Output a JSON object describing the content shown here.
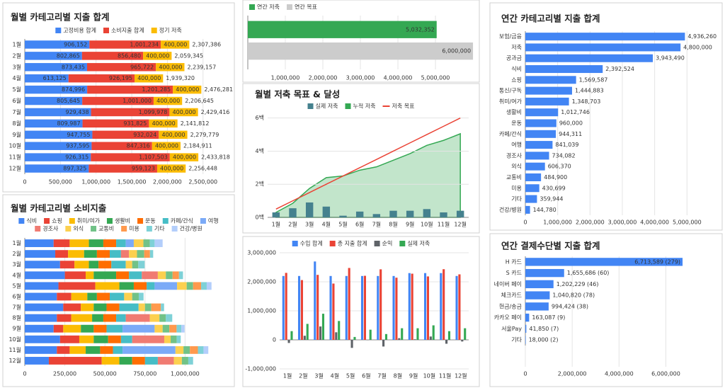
{
  "chart_data": [
    {
      "type": "bar",
      "orientation": "horizontal",
      "stacked": true,
      "title": "월별 카테고리별 지출 합계",
      "categories": [
        "1월",
        "2월",
        "3월",
        "4월",
        "5월",
        "6월",
        "7월",
        "8월",
        "9월",
        "10월",
        "11월",
        "12월"
      ],
      "series": [
        {
          "name": "고정비용 합계",
          "color": "#4285f4",
          "values": [
            906152,
            802865,
            873435,
            613125,
            874996,
            805645,
            929438,
            809987,
            947755,
            937595,
            926315,
            897325
          ],
          "value_labels": [
            "906,152",
            "802,865",
            "873,435",
            "613,125",
            "874,996",
            "805,645",
            "929,438",
            "809,987",
            "947,755",
            "937,595",
            "926,315",
            "897,325"
          ]
        },
        {
          "name": "소비지출 합계",
          "color": "#ea4335",
          "values": [
            1001234,
            856480,
            965722,
            926195,
            1201285,
            1001000,
            1099978,
            931825,
            932024,
            847316,
            1107503,
            959123
          ],
          "value_labels": [
            "1,001,234",
            "856,480",
            "965,722",
            "926,195",
            "1,201,285",
            "1,001,000",
            "1,099,978",
            "931,825",
            "932,024",
            "847,316",
            "1,107,503",
            "959,123"
          ]
        },
        {
          "name": "정기 저축",
          "color": "#fbbc04",
          "values": [
            400000,
            400000,
            400000,
            400000,
            400000,
            400000,
            400000,
            400000,
            400000,
            400000,
            400000,
            400000
          ],
          "value_labels": [
            "400,000",
            "400,000",
            "400,000",
            "400,000",
            "400,000",
            "400,000",
            "400,000",
            "400,000",
            "400,000",
            "400,000",
            "400,000",
            "400,000"
          ]
        }
      ],
      "totals": [
        2307386,
        2059345,
        2239157,
        1939320,
        2476281,
        2206645,
        2429416,
        2141812,
        2279779,
        2184911,
        2433818,
        2256448
      ],
      "total_labels": [
        "2,307,386",
        "2,059,345",
        "2,239,157",
        "1,939,320",
        "2,476,281",
        "2,206,645",
        "2,429,416",
        "2,141,812",
        "2,279,779",
        "2,184,911",
        "2,433,818",
        "2,256,448"
      ],
      "value_label_position": "inside",
      "xlim": [
        0,
        2830000
      ],
      "xticks": [
        0,
        {
          "value": 500000,
          "label": "500,000"
        },
        {
          "value": 1000000,
          "label": "1,000,000"
        },
        {
          "value": 1500000,
          "label": "1,500,000"
        },
        {
          "value": 2000000,
          "label": "2,000,000"
        },
        {
          "value": 2500000,
          "label": "2,500,000"
        }
      ],
      "grid": true
    },
    {
      "type": "bar",
      "orientation": "horizontal",
      "stacked": false,
      "categories": [
        null
      ],
      "series": [
        {
          "name": "연간 저축",
          "color": "#34a853",
          "values": [
            5032352
          ],
          "value_labels": [
            "5,032,352"
          ]
        },
        {
          "name": "연간 목표",
          "color": "#cccccc",
          "values": [
            6000000
          ],
          "value_labels": [
            "6,000,000"
          ]
        }
      ],
      "value_label_position": "inside",
      "xlim": [
        0,
        6150000
      ],
      "xticks": [
        {
          "value": 1000000,
          "label": "1,000,000"
        },
        {
          "value": 2000000,
          "label": "2,000,000"
        },
        {
          "value": 3000000,
          "label": "3,000,000"
        },
        {
          "value": 4000000,
          "label": "4,000,000"
        },
        {
          "value": 5000000,
          "label": "5,000,000"
        }
      ],
      "grid": true
    },
    {
      "type": "combo",
      "title": "월별 저축 목표 & 달성",
      "categories": [
        "1월",
        "2월",
        "3월",
        "4월",
        "5월",
        "6월",
        "7월",
        "8월",
        "9월",
        "10월",
        "11월",
        "12월"
      ],
      "series": [
        {
          "name": "실제 저축",
          "kind": "bar",
          "color": "#45818e",
          "values": [
            300000,
            550000,
            900000,
            650000,
            100000,
            350000,
            200000,
            400000,
            400000,
            500000,
            300000,
            400000
          ]
        },
        {
          "name": "누적 저축",
          "kind": "area",
          "color": "#34a853",
          "values": [
            300000,
            850000,
            1750000,
            2400000,
            2500000,
            2850000,
            3050000,
            3450000,
            3850000,
            4350000,
            4650000,
            5050000
          ]
        },
        {
          "name": "저축 목표",
          "kind": "line",
          "color": "#ea4335",
          "values": [
            500000,
            1000000,
            1500000,
            2000000,
            2500000,
            3000000,
            3500000,
            4000000,
            4500000,
            5000000,
            5500000,
            6000000
          ]
        }
      ],
      "ylim": [
        0,
        6200000
      ],
      "yticks": [
        {
          "value": 0,
          "label": "0백"
        },
        {
          "value": 2000000,
          "label": "2백"
        },
        {
          "value": 4000000,
          "label": "4백"
        },
        {
          "value": 6000000,
          "label": "6백"
        }
      ],
      "grid": true
    },
    {
      "type": "combo",
      "categories": [
        "1월",
        "2월",
        "3월",
        "4월",
        "5월",
        "6월",
        "7월",
        "8월",
        "9월",
        "10월",
        "11월",
        "12월"
      ],
      "series": [
        {
          "name": "수입 합계",
          "kind": "bar",
          "color": "#4285f4",
          "values": [
            2200000,
            2200000,
            2700000,
            2200000,
            2200000,
            2200000,
            2200000,
            2200000,
            2300000,
            2300000,
            2300000,
            2200000
          ]
        },
        {
          "name": "총 지출 합계",
          "kind": "bar",
          "color": "#ea4335",
          "values": [
            2307386,
            2059345,
            2239157,
            1939320,
            2476281,
            2206645,
            2429416,
            2141812,
            2279779,
            2184911,
            2433818,
            2256448
          ]
        },
        {
          "name": "순익",
          "kind": "bar",
          "color": "#5f6368",
          "values": [
            -107386,
            140655,
            460843,
            260680,
            -276281,
            -6645,
            -229416,
            58188,
            20221,
            115089,
            -133818,
            -56448
          ]
        },
        {
          "name": "실제 저축",
          "kind": "bar",
          "color": "#34a853",
          "values": [
            300000,
            550000,
            900000,
            650000,
            100000,
            350000,
            200000,
            400000,
            400000,
            500000,
            300000,
            400000
          ]
        }
      ],
      "ylim": [
        -1000000,
        3000000
      ],
      "yticks": [
        {
          "value": -1000000,
          "label": "-1,000,000"
        },
        0,
        {
          "value": 1000000,
          "label": "1,000,000"
        },
        {
          "value": 2000000,
          "label": "2,000,000"
        },
        {
          "value": 3000000,
          "label": "3,000,000"
        }
      ],
      "grid": true
    },
    {
      "type": "bar",
      "orientation": "horizontal",
      "stacked": true,
      "title": "월별 카테고리별 소비지출",
      "categories": [
        "1월",
        "2월",
        "3월",
        "4월",
        "5월",
        "6월",
        "7월",
        "8월",
        "9월",
        "10월",
        "11월",
        "12월"
      ],
      "series": [
        {
          "name": "식비",
          "color": "#4285f4",
          "values": [
            180000,
            190000,
            220000,
            250000,
            210000,
            200000,
            240000,
            200000,
            180000,
            220000,
            200000,
            150000
          ]
        },
        {
          "name": "쇼핑",
          "color": "#ea4335",
          "values": [
            100000,
            80000,
            90000,
            130000,
            230000,
            90000,
            110000,
            90000,
            60000,
            120000,
            80000,
            330000
          ]
        },
        {
          "name": "취미/여가",
          "color": "#fbbc04",
          "values": [
            120000,
            100000,
            90000,
            50000,
            150000,
            100000,
            80000,
            130000,
            110000,
            90000,
            100000,
            110000
          ]
        },
        {
          "name": "생활비",
          "color": "#34a853",
          "values": [
            90000,
            80000,
            60000,
            140000,
            90000,
            60000,
            80000,
            70000,
            80000,
            90000,
            90000,
            80000
          ]
        },
        {
          "name": "운동",
          "color": "#ff6d01",
          "values": [
            80000,
            80000,
            80000,
            80000,
            80000,
            80000,
            80000,
            80000,
            80000,
            80000,
            80000,
            80000
          ]
        },
        {
          "name": "카페/간식",
          "color": "#46bdc6",
          "values": [
            60000,
            70000,
            90000,
            80000,
            50000,
            90000,
            120000,
            60000,
            100000,
            70000,
            60000,
            80000
          ]
        },
        {
          "name": "여행",
          "color": "#7baaf7",
          "values": [
            50000,
            0,
            0,
            0,
            140000,
            0,
            0,
            0,
            200000,
            0,
            330000,
            0
          ]
        },
        {
          "name": "경조사",
          "color": "#f07b72",
          "values": [
            0,
            50000,
            0,
            100000,
            0,
            0,
            0,
            150000,
            0,
            200000,
            0,
            100000
          ]
        },
        {
          "name": "외식",
          "color": "#fcd04f",
          "values": [
            60000,
            50000,
            40000,
            50000,
            60000,
            50000,
            40000,
            60000,
            50000,
            40000,
            50000,
            50000
          ]
        },
        {
          "name": "교통비",
          "color": "#71c287",
          "values": [
            40000,
            45000,
            38000,
            42000,
            40000,
            41000,
            39000,
            40000,
            42000,
            38000,
            40000,
            40000
          ]
        },
        {
          "name": "미용",
          "color": "#ff994d",
          "values": [
            0,
            36000,
            0,
            40000,
            50000,
            0,
            60000,
            0,
            45000,
            0,
            50000,
            0
          ]
        },
        {
          "name": "기타",
          "color": "#7ed1d7",
          "values": [
            30000,
            20000,
            40000,
            25000,
            35000,
            30000,
            20000,
            40000,
            30000,
            25000,
            35000,
            30000
          ]
        },
        {
          "name": "건강/병원",
          "color": "#b3cefb",
          "values": [
            50000,
            0,
            0,
            0,
            30000,
            0,
            0,
            0,
            20000,
            0,
            30000,
            0
          ]
        }
      ],
      "xlim": [
        0,
        1250000
      ],
      "xticks": [
        0,
        {
          "value": 250000,
          "label": "250,000"
        },
        {
          "value": 500000,
          "label": "500,000"
        },
        {
          "value": 750000,
          "label": "750,000"
        },
        {
          "value": 1000000,
          "label": "1,000,000"
        }
      ],
      "grid": true
    },
    {
      "type": "bar",
      "orientation": "horizontal",
      "stacked": false,
      "title": "연간 카테고리별 지출 합계",
      "categories": [
        "보험/금융",
        "저축",
        "공과금",
        "식비",
        "쇼핑",
        "통신/구독",
        "취미/여가",
        "생활비",
        "운동",
        "카페/간식",
        "여행",
        "경조사",
        "외식",
        "교통비",
        "미용",
        "기타",
        "건강/병원"
      ],
      "series": [
        {
          "color": "#4285f4",
          "label_color": "#4285f4",
          "values": [
            4936260,
            4800000,
            3943490,
            2392524,
            1569587,
            1444883,
            1348703,
            1012746,
            960000,
            944311,
            841039,
            734082,
            606370,
            484900,
            430699,
            359944,
            144780
          ],
          "value_labels": [
            "4,936,260",
            "4,800,000",
            "3,943,490",
            "2,392,524",
            "1,569,587",
            "1,444,883",
            "1,348,703",
            "1,012,746",
            "960,000",
            "944,311",
            "841,039",
            "734,082",
            "606,370",
            "484,900",
            "430,699",
            "359,944",
            "144,780"
          ]
        }
      ],
      "xlim": [
        0,
        5650000
      ],
      "xticks": [
        0,
        {
          "value": 1000000,
          "label": "1,000,000"
        },
        {
          "value": 2000000,
          "label": "2,000,000"
        },
        {
          "value": 3000000,
          "label": "3,000,000"
        },
        {
          "value": 4000000,
          "label": "4,000,000"
        },
        {
          "value": 5000000,
          "label": "5,000,000"
        }
      ],
      "grid": true
    },
    {
      "type": "bar",
      "orientation": "horizontal",
      "stacked": false,
      "title": "연간 결제수단별 지출 합계",
      "categories": [
        "H 카드",
        "S 카드",
        "네이버 페이",
        "체크카드",
        "현금/송금",
        "카카오 페이",
        "서울Pay",
        "기타"
      ],
      "series": [
        {
          "color": "#4285f4",
          "label_color": "#4285f4",
          "values": [
            6713589,
            1655686,
            1202229,
            1040820,
            994424,
            163087,
            41850,
            18000
          ],
          "value_labels": [
            "6,713,589 (279)",
            "1,655,686 (60)",
            "1,202,229 (46)",
            "1,040,820 (78)",
            "994,424 (38)",
            "163,087 (9)",
            "41,850 (7)",
            "18,000 (2)"
          ]
        }
      ],
      "xlim": [
        0,
        7800000
      ],
      "xticks": [
        0,
        {
          "value": 2000000,
          "label": "2,000,000"
        },
        {
          "value": 4000000,
          "label": "4,000,000"
        },
        {
          "value": 6000000,
          "label": "6,000,000"
        }
      ],
      "grid": true
    }
  ]
}
